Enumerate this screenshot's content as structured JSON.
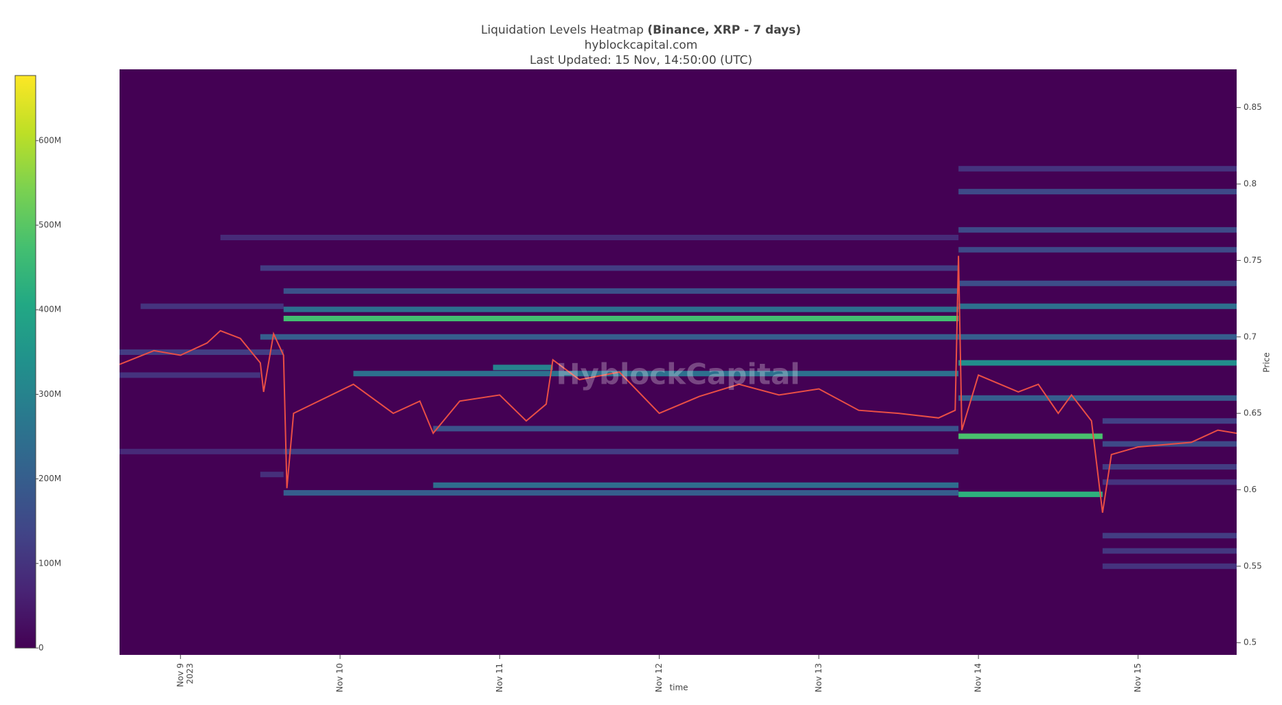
{
  "chart_data": {
    "type": "heatmap",
    "title": "Liquidation Levels Heatmap",
    "title_detail": "(Binance, XRP - 7 days)",
    "subtitle": "hyblockcapital.com",
    "updated": "Last Updated: 15 Nov, 14:50:00 (UTC)",
    "watermark": "HyblockCapital",
    "x_label": "time",
    "y_label": "Price",
    "colorscale": "viridis",
    "grid": false,
    "xlim": [
      "2023-11-08 14:50",
      "2023-11-15 14:50"
    ],
    "xticks": [
      {
        "value": "2023-11-09",
        "label": "Nov 9\n2023"
      },
      {
        "value": "2023-11-10",
        "label": "Nov 10"
      },
      {
        "value": "2023-11-11",
        "label": "Nov 11"
      },
      {
        "value": "2023-11-12",
        "label": "Nov 12"
      },
      {
        "value": "2023-11-13",
        "label": "Nov 13"
      },
      {
        "value": "2023-11-14",
        "label": "Nov 14"
      },
      {
        "value": "2023-11-15",
        "label": "Nov 15"
      }
    ],
    "ylim": [
      0.492,
      0.875
    ],
    "yticks": [
      0.5,
      0.55,
      0.6,
      0.65,
      0.7,
      0.75,
      0.8,
      0.85
    ],
    "zlim": [
      0,
      677000000
    ],
    "zticks": [
      0,
      {
        "value": 100000000,
        "label": "100M"
      },
      {
        "value": 200000000,
        "label": "200M"
      },
      {
        "value": 300000000,
        "label": "300M"
      },
      {
        "value": 400000000,
        "label": "400M"
      },
      {
        "value": 500000000,
        "label": "500M"
      },
      {
        "value": 600000000,
        "label": "600M"
      }
    ],
    "levels": [
      {
        "price": 0.765,
        "start": "2023-11-09 06:00",
        "end": "2023-11-13 21:00",
        "value": 80000000
      },
      {
        "price": 0.625,
        "start": "2023-11-08 14:50",
        "end": "2023-11-09 15:30",
        "value": 80000000
      },
      {
        "price": 0.61,
        "start": "2023-11-09 12:00",
        "end": "2023-11-09 15:30",
        "value": 90000000
      },
      {
        "price": 0.72,
        "start": "2023-11-08 18:00",
        "end": "2023-11-09 15:30",
        "value": 100000000
      },
      {
        "price": 0.675,
        "start": "2023-11-08 14:50",
        "end": "2023-11-09 12:00",
        "value": 100000000
      },
      {
        "price": 0.81,
        "start": "2023-11-13 21:00",
        "end": "2023-11-15 14:50",
        "value": 100000000
      },
      {
        "price": 0.55,
        "start": "2023-11-14 18:40",
        "end": "2023-11-15 14:50",
        "value": 100000000
      },
      {
        "price": 0.605,
        "start": "2023-11-14 18:40",
        "end": "2023-11-15 14:50",
        "value": 100000000
      },
      {
        "price": 0.56,
        "start": "2023-11-14 18:40",
        "end": "2023-11-15 14:50",
        "value": 110000000
      },
      {
        "price": 0.69,
        "start": "2023-11-08 14:50",
        "end": "2023-11-09 15:30",
        "value": 120000000
      },
      {
        "price": 0.745,
        "start": "2023-11-09 12:00",
        "end": "2023-11-13 21:00",
        "value": 120000000
      },
      {
        "price": 0.625,
        "start": "2023-11-09 15:30",
        "end": "2023-11-13 21:00",
        "value": 120000000
      },
      {
        "price": 0.57,
        "start": "2023-11-14 18:40",
        "end": "2023-11-15 14:50",
        "value": 120000000
      },
      {
        "price": 0.615,
        "start": "2023-11-14 18:40",
        "end": "2023-11-15 14:50",
        "value": 120000000
      },
      {
        "price": 0.645,
        "start": "2023-11-14 18:40",
        "end": "2023-11-15 14:50",
        "value": 130000000
      },
      {
        "price": 0.795,
        "start": "2023-11-13 21:00",
        "end": "2023-11-15 14:50",
        "value": 150000000
      },
      {
        "price": 0.757,
        "start": "2023-11-13 21:00",
        "end": "2023-11-15 14:50",
        "value": 150000000
      },
      {
        "price": 0.77,
        "start": "2023-11-13 21:00",
        "end": "2023-11-15 14:50",
        "value": 150000000
      },
      {
        "price": 0.63,
        "start": "2023-11-14 18:40",
        "end": "2023-11-15 14:50",
        "value": 150000000
      },
      {
        "price": 0.735,
        "start": "2023-11-13 21:00",
        "end": "2023-11-15 14:50",
        "value": 160000000
      },
      {
        "price": 0.73,
        "start": "2023-11-09 15:30",
        "end": "2023-11-13 21:00",
        "value": 170000000
      },
      {
        "price": 0.64,
        "start": "2023-11-10 14:00",
        "end": "2023-11-13 21:00",
        "value": 170000000
      },
      {
        "price": 0.7,
        "start": "2023-11-09 12:00",
        "end": "2023-11-13 21:00",
        "value": 200000000
      },
      {
        "price": 0.7,
        "start": "2023-11-13 21:00",
        "end": "2023-11-15 14:50",
        "value": 200000000
      },
      {
        "price": 0.66,
        "start": "2023-11-13 21:00",
        "end": "2023-11-15 14:50",
        "value": 200000000
      },
      {
        "price": 0.598,
        "start": "2023-11-09 15:30",
        "end": "2023-11-13 21:00",
        "value": 200000000
      },
      {
        "price": 0.603,
        "start": "2023-11-10 14:00",
        "end": "2023-11-13 21:00",
        "value": 240000000
      },
      {
        "price": 0.718,
        "start": "2023-11-09 15:30",
        "end": "2023-11-13 21:00",
        "value": 250000000
      },
      {
        "price": 0.72,
        "start": "2023-11-13 21:00",
        "end": "2023-11-15 14:50",
        "value": 250000000
      },
      {
        "price": 0.676,
        "start": "2023-11-10 02:00",
        "end": "2023-11-13 21:00",
        "value": 250000000
      },
      {
        "price": 0.68,
        "start": "2023-11-10 23:00",
        "end": "2023-11-11 08:00",
        "value": 300000000
      },
      {
        "price": 0.683,
        "start": "2023-11-13 21:00",
        "end": "2023-11-15 14:50",
        "value": 330000000
      },
      {
        "price": 0.597,
        "start": "2023-11-13 21:00",
        "end": "2023-11-14 18:40",
        "value": 430000000
      },
      {
        "price": 0.712,
        "start": "2023-11-09 15:30",
        "end": "2023-11-13 21:00",
        "value": 470000000
      },
      {
        "price": 0.635,
        "start": "2023-11-13 21:00",
        "end": "2023-11-14 18:40",
        "value": 480000000
      }
    ],
    "price": {
      "color": "#ea4f45",
      "x": [
        "2023-11-08 14:50",
        "2023-11-08 20:00",
        "2023-11-09 00:00",
        "2023-11-09 04:00",
        "2023-11-09 06:00",
        "2023-11-09 09:00",
        "2023-11-09 12:00",
        "2023-11-09 12:30",
        "2023-11-09 14:00",
        "2023-11-09 15:30",
        "2023-11-09 16:00",
        "2023-11-09 17:00",
        "2023-11-10 02:00",
        "2023-11-10 08:00",
        "2023-11-10 12:00",
        "2023-11-10 14:00",
        "2023-11-10 18:00",
        "2023-11-11 00:00",
        "2023-11-11 04:00",
        "2023-11-11 07:00",
        "2023-11-11 08:00",
        "2023-11-11 12:00",
        "2023-11-11 18:00",
        "2023-11-12 00:00",
        "2023-11-12 06:00",
        "2023-11-12 12:00",
        "2023-11-12 18:00",
        "2023-11-13 00:00",
        "2023-11-13 06:00",
        "2023-11-13 12:00",
        "2023-11-13 18:00",
        "2023-11-13 20:30",
        "2023-11-13 21:00",
        "2023-11-13 21:30",
        "2023-11-14 00:00",
        "2023-11-14 06:00",
        "2023-11-14 09:00",
        "2023-11-14 12:00",
        "2023-11-14 14:00",
        "2023-11-14 17:00",
        "2023-11-14 18:40",
        "2023-11-14 20:00",
        "2023-11-15 00:00",
        "2023-11-15 08:00",
        "2023-11-15 12:00",
        "2023-11-15 14:50"
      ],
      "values": [
        0.682,
        0.691,
        0.688,
        0.696,
        0.704,
        0.699,
        0.683,
        0.664,
        0.702,
        0.688,
        0.601,
        0.65,
        0.669,
        0.65,
        0.658,
        0.637,
        0.658,
        0.662,
        0.645,
        0.656,
        0.685,
        0.672,
        0.677,
        0.65,
        0.661,
        0.669,
        0.662,
        0.666,
        0.652,
        0.65,
        0.647,
        0.652,
        0.753,
        0.639,
        0.675,
        0.664,
        0.669,
        0.65,
        0.662,
        0.645,
        0.585,
        0.623,
        0.628,
        0.631,
        0.639,
        0.637
      ]
    }
  }
}
